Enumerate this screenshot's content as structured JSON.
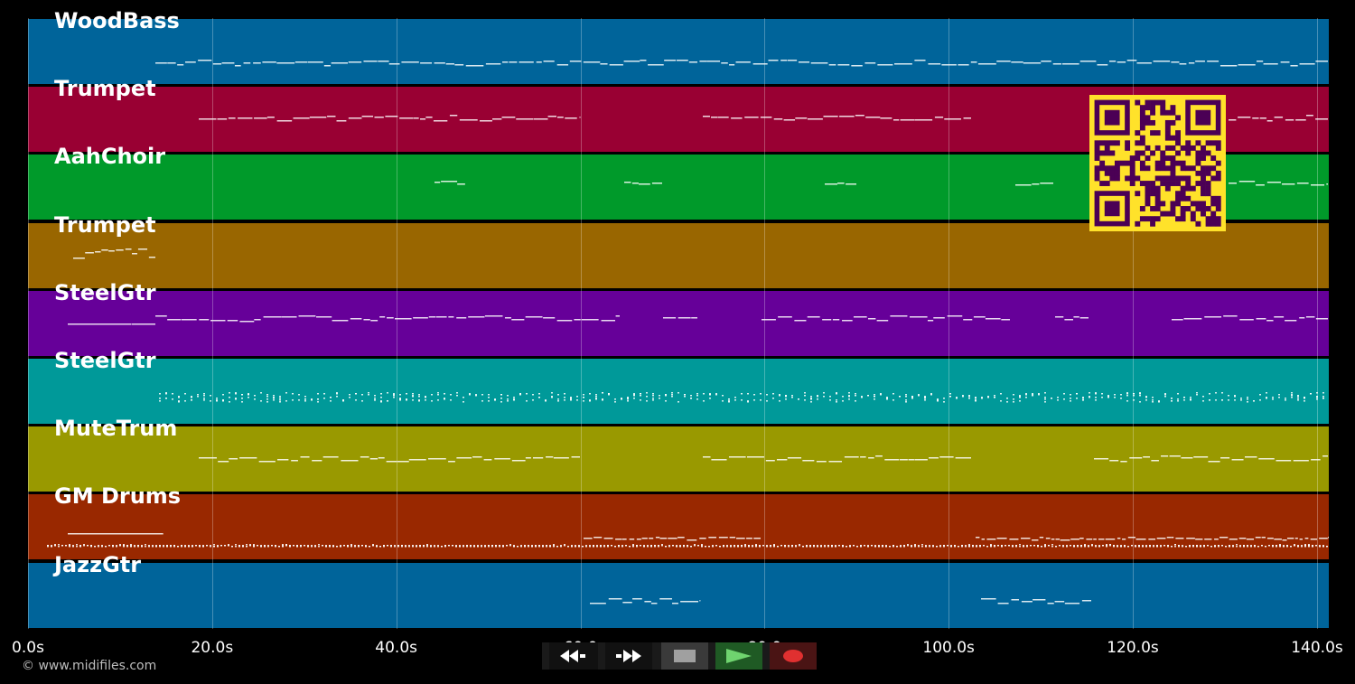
{
  "app": {
    "copyright": "© www.midifiles.com"
  },
  "timeline": {
    "ticks": [
      "0.0s",
      "20.0s",
      "40.0s",
      "60.0",
      "80.0",
      "100.0s",
      "120.0s",
      "140.0s"
    ],
    "duration_seconds": 141.3
  },
  "tracks": [
    {
      "name": "WoodBass",
      "color": "#00649a"
    },
    {
      "name": "Trumpet",
      "color": "#990033"
    },
    {
      "name": "AahChoir",
      "color": "#009a2a"
    },
    {
      "name": "Trumpet",
      "color": "#996600"
    },
    {
      "name": "SteelGtr",
      "color": "#660099"
    },
    {
      "name": "SteelGtr",
      "color": "#009999"
    },
    {
      "name": "MuteTrum",
      "color": "#999900"
    },
    {
      "name": "GM Drums",
      "color": "#992800"
    },
    {
      "name": "JazzGtr",
      "color": "#00649a"
    }
  ],
  "transport": {
    "buttons": [
      {
        "name": "rewind-button",
        "icon": "rewind-icon"
      },
      {
        "name": "fast-forward-button",
        "icon": "fast-forward-icon"
      },
      {
        "name": "stop-button",
        "icon": "stop-icon"
      },
      {
        "name": "play-button",
        "icon": "play-icon"
      },
      {
        "name": "record-button",
        "icon": "record-icon"
      }
    ]
  },
  "colors": {
    "background": "#000000",
    "note": "#ffffff",
    "qr_fg": "#4b0055",
    "qr_bg": "#ffe22a"
  }
}
